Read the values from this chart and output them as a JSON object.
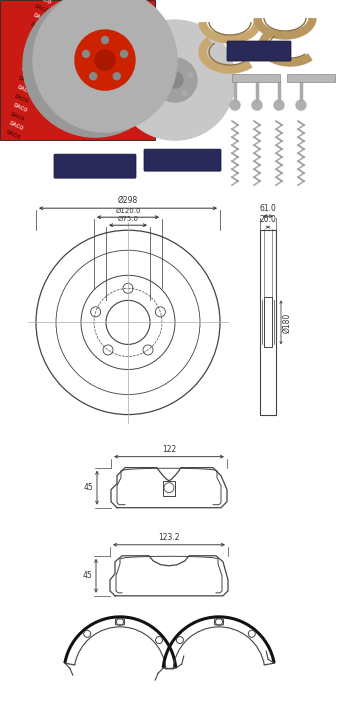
{
  "bg_color": "#ffffff",
  "fig_width": 3.39,
  "fig_height": 7.2,
  "dpi": 100,
  "disc_dims": {
    "outer_d": "Ø298",
    "bolt_circle_d": "Ø120.0",
    "center_d": "Ø75.0",
    "width_top": "61.0",
    "width_bot": "20.0",
    "hub_d": "Ø180"
  },
  "pad1_dims": {
    "width": "122",
    "height": "45"
  },
  "pad2_dims": {
    "width": "123.2",
    "height": "45"
  },
  "line_color": "#444444",
  "text_color": "#333333",
  "text_fontsize": 5.5,
  "photo_bg": "#e8e8e8"
}
